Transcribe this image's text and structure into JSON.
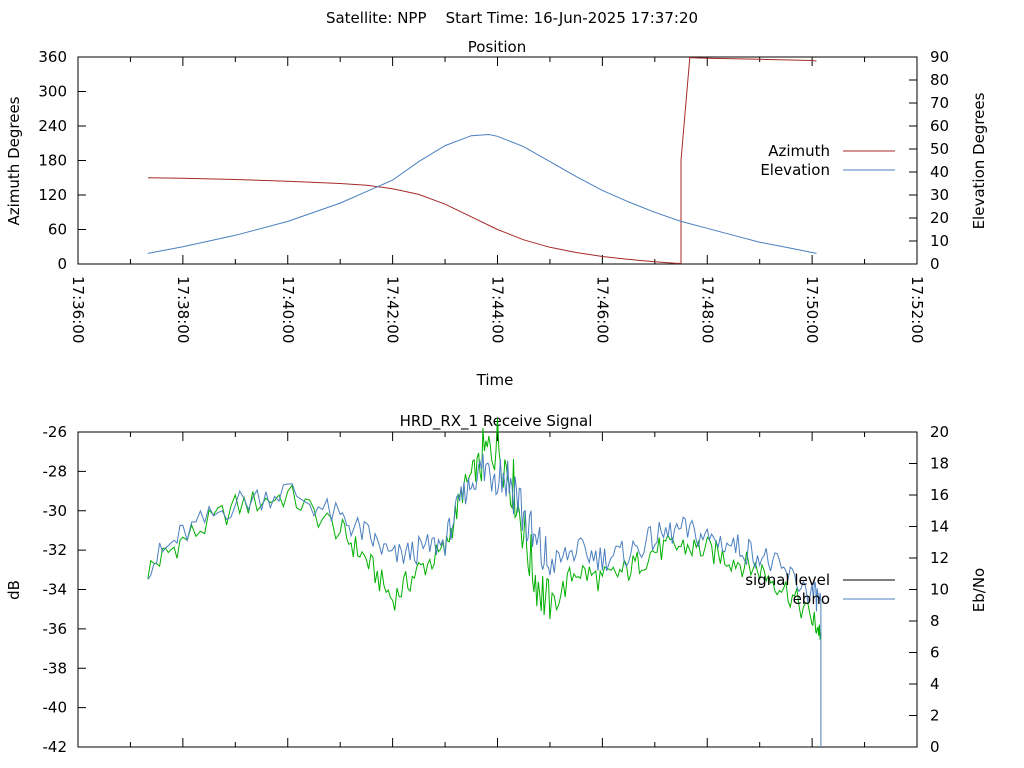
{
  "figure": {
    "title": "Satellite: NPP    Start Time: 16-Jun-2025 17:37:20"
  },
  "chart_data": [
    {
      "type": "line",
      "title": "Position",
      "xlabel": "Time",
      "ylabel": "Azimuth Degrees",
      "y2label": "Elevation Degrees",
      "x_ticks": [
        "17:36:00",
        "17:38:00",
        "17:40:00",
        "17:42:00",
        "17:44:00",
        "17:46:00",
        "17:48:00",
        "17:50:00",
        "17:52:00"
      ],
      "xlim": [
        "17:36:00",
        "17:52:00"
      ],
      "ylim": [
        0,
        360
      ],
      "y_ticks": [
        0,
        60,
        120,
        180,
        240,
        300,
        360
      ],
      "y2lim": [
        0,
        90
      ],
      "y2_ticks": [
        0,
        10,
        20,
        30,
        40,
        50,
        60,
        70,
        80,
        90
      ],
      "grid": false,
      "legend": "right",
      "series": [
        {
          "name": "Azimuth",
          "color": "#a52a2a",
          "axis": "left",
          "x": [
            "17:37:20",
            "17:38:00",
            "17:39:00",
            "17:40:00",
            "17:41:00",
            "17:41:30",
            "17:42:00",
            "17:42:30",
            "17:43:00",
            "17:43:30",
            "17:44:00",
            "17:44:30",
            "17:45:00",
            "17:45:30",
            "17:46:00",
            "17:46:30",
            "17:47:00",
            "17:47:25",
            "17:47:30",
            "17:47:30",
            "17:47:40",
            "17:48:00",
            "17:49:00",
            "17:50:00",
            "17:50:05"
          ],
          "values": [
            150,
            149,
            147,
            144,
            140,
            137,
            131,
            121,
            104,
            82,
            60,
            42,
            29,
            20,
            13,
            8,
            4,
            1,
            1,
            180,
            359,
            358,
            356,
            354,
            353
          ]
        },
        {
          "name": "Elevation",
          "color": "#4a7fbf",
          "axis": "right",
          "x": [
            "17:37:20",
            "17:38:00",
            "17:39:00",
            "17:40:00",
            "17:41:00",
            "17:42:00",
            "17:42:30",
            "17:43:00",
            "17:43:30",
            "17:43:50",
            "17:44:00",
            "17:44:30",
            "17:45:00",
            "17:45:30",
            "17:46:00",
            "17:46:30",
            "17:47:00",
            "17:47:30",
            "17:48:00",
            "17:48:30",
            "17:49:00",
            "17:49:30",
            "17:50:00",
            "17:50:05"
          ],
          "values": [
            4.6,
            7.5,
            12.5,
            18.5,
            26.5,
            36.5,
            44.5,
            51.5,
            55.8,
            56.3,
            55.5,
            51,
            44.5,
            38,
            32,
            27,
            22.5,
            18.5,
            15.5,
            12.5,
            9.5,
            7.3,
            5,
            4.6
          ]
        }
      ]
    },
    {
      "type": "line",
      "title": "HRD_RX_1 Receive Signal",
      "xlabel": "",
      "ylabel": "dB",
      "y2label": "Eb/No",
      "xlim": [
        "17:36:00",
        "17:52:00"
      ],
      "ylim": [
        -42,
        -26
      ],
      "y_ticks": [
        -42,
        -40,
        -38,
        -36,
        -34,
        -32,
        -30,
        -28,
        -26
      ],
      "y2lim": [
        0,
        20
      ],
      "y2_ticks": [
        0,
        2,
        4,
        6,
        8,
        10,
        12,
        14,
        16,
        18,
        20
      ],
      "grid": false,
      "legend": "right",
      "series": [
        {
          "name": "signal level",
          "color": "#00b000",
          "axis": "left",
          "x": [
            "17:37:20",
            "17:38:00",
            "17:39:00",
            "17:40:00",
            "17:41:00",
            "17:41:30",
            "17:42:00",
            "17:42:30",
            "17:43:00",
            "17:43:20",
            "17:43:40",
            "17:44:00",
            "17:44:20",
            "17:44:40",
            "17:45:00",
            "17:45:30",
            "17:46:00",
            "17:46:30",
            "17:47:00",
            "17:47:30",
            "17:48:00",
            "17:48:30",
            "17:49:00",
            "17:49:30",
            "17:50:00",
            "17:50:10"
          ],
          "values": [
            -33,
            -31.5,
            -29.8,
            -29.2,
            -31,
            -32.5,
            -34.5,
            -33,
            -32,
            -29,
            -27.5,
            -26.5,
            -29,
            -33,
            -35,
            -33,
            -33.5,
            -33,
            -32,
            -31.8,
            -32,
            -32.5,
            -33,
            -34,
            -35.5,
            -36.2
          ]
        },
        {
          "name": "ebno",
          "color": "#4a7fbf",
          "axis": "right",
          "x": [
            "17:37:20",
            "17:38:00",
            "17:39:00",
            "17:40:00",
            "17:41:00",
            "17:41:30",
            "17:42:00",
            "17:42:30",
            "17:43:00",
            "17:43:20",
            "17:43:40",
            "17:44:00",
            "17:44:20",
            "17:44:40",
            "17:45:00",
            "17:45:30",
            "17:46:00",
            "17:46:30",
            "17:47:00",
            "17:47:30",
            "17:48:00",
            "17:48:30",
            "17:49:00",
            "17:49:30",
            "17:50:00",
            "17:50:10",
            "17:50:10"
          ],
          "values": [
            11.5,
            13.5,
            15.5,
            16.3,
            14.5,
            13.5,
            12,
            12.5,
            13,
            16,
            17.5,
            17.8,
            16.5,
            13,
            11.5,
            12.5,
            12,
            12.3,
            13.3,
            13.8,
            13.3,
            12.8,
            12.2,
            11,
            9.8,
            9.2,
            0
          ]
        }
      ]
    }
  ]
}
